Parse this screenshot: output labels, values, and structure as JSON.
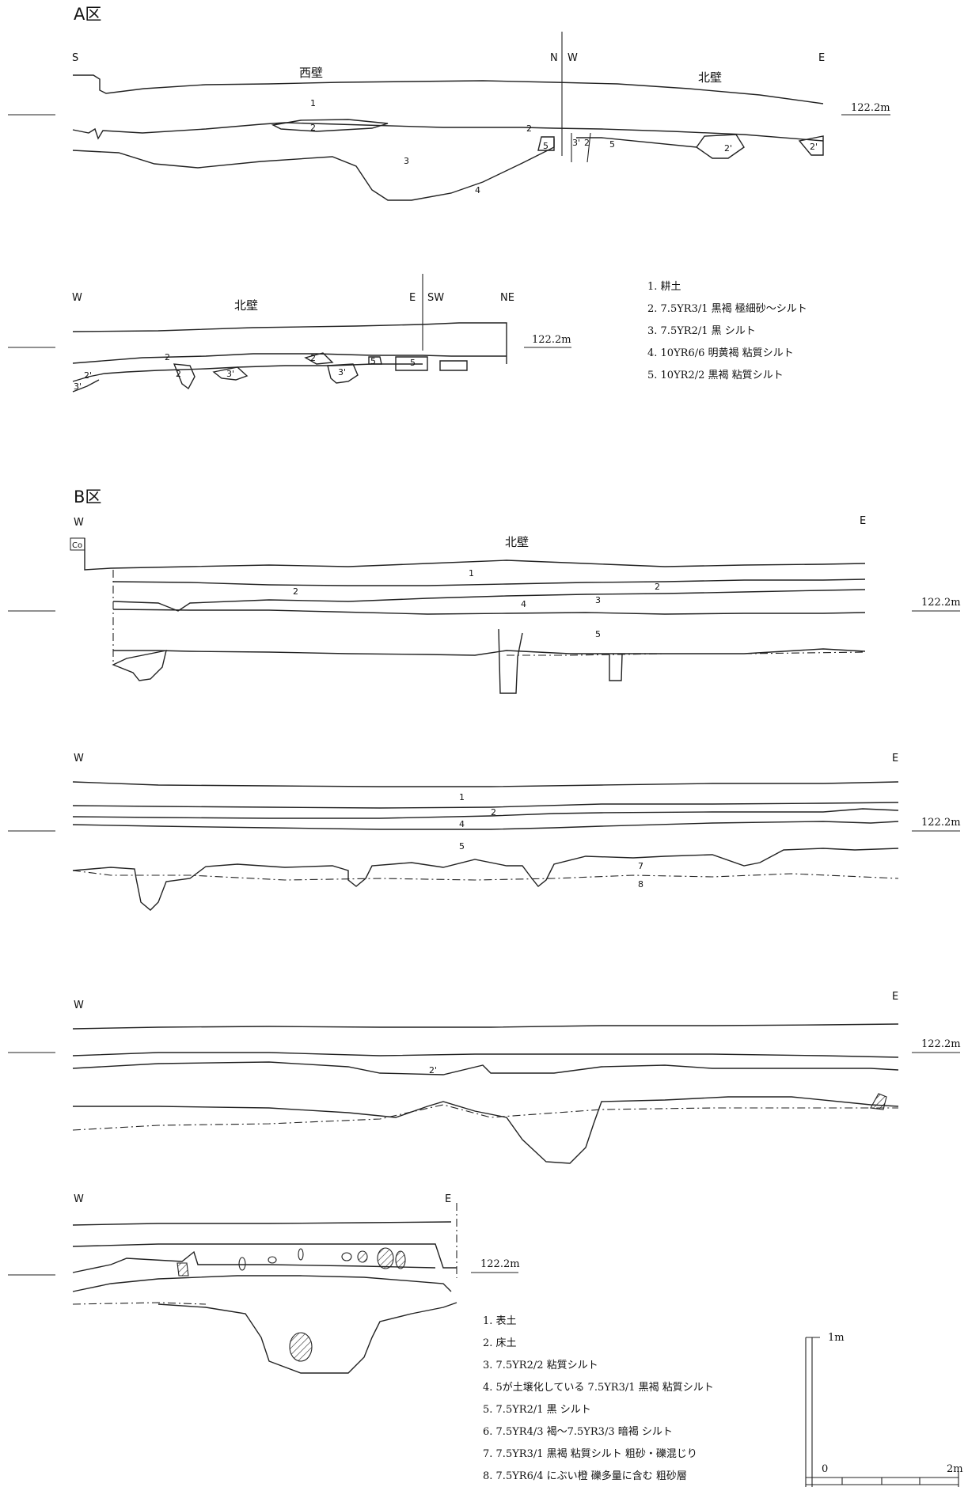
{
  "section_a": {
    "title": "A区",
    "profile1": {
      "dir_left": "S",
      "dir_n": "N",
      "dir_w": "W",
      "dir_right": "E",
      "wall_west": "西壁",
      "wall_north": "北壁",
      "elevation": "122.2m",
      "layer_labels": [
        "1",
        "2",
        "2",
        "3",
        "4",
        "5",
        "3'",
        "2",
        "5",
        "2'",
        "2'"
      ]
    },
    "profile2": {
      "dir_left": "W",
      "dir_e": "E",
      "dir_sw": "SW",
      "dir_right": "NE",
      "wall_north": "北壁",
      "elevation": "122.2m",
      "layer_labels": [
        "2",
        "2'",
        "3'",
        "2",
        "3'",
        "3'",
        "2",
        "5",
        "5"
      ]
    },
    "legend": [
      "1. 耕土",
      "2. 7.5YR3/1 黒褐 極細砂～シルト",
      "3. 7.5YR2/1 黒 シルト",
      "4. 10YR6/6 明黄褐 粘質シルト",
      "5. 10YR2/2 黒褐 粘質シルト"
    ]
  },
  "section_b": {
    "title": "B区",
    "profile1": {
      "dir_left": "W",
      "dir_right": "E",
      "marker": "Co",
      "wall_north": "北壁",
      "elevation": "122.2m",
      "layer_labels": [
        "1",
        "2",
        "2",
        "3",
        "4",
        "5"
      ]
    },
    "profile2": {
      "dir_left": "W",
      "dir_right": "E",
      "elevation": "122.2m",
      "layer_labels": [
        "1",
        "2",
        "4",
        "5",
        "7",
        "8"
      ]
    },
    "profile3": {
      "dir_left": "W",
      "dir_right": "E",
      "elevation": "122.2m",
      "layer_labels": [
        "2'"
      ]
    },
    "profile4": {
      "dir_left": "W",
      "dir_right": "E",
      "elevation": "122.2m"
    },
    "legend": [
      "1. 表土",
      "2. 床土",
      "3. 7.5YR2/2 粘質シルト",
      "4. 5が土壌化している 7.5YR3/1 黒褐 粘質シルト",
      "5. 7.5YR2/1 黒 シルト",
      "6. 7.5YR4/3 褐～7.5YR3/3 暗褐 シルト",
      "7. 7.5YR3/1 黒褐 粘質シルト 粗砂・礫混じり",
      "8. 7.5YR6/4 にぶい橙 礫多量に含む 粗砂層"
    ]
  },
  "scale_bar": {
    "vertical_label": "1m",
    "origin_label": "0",
    "horizontal_label": "2m"
  }
}
